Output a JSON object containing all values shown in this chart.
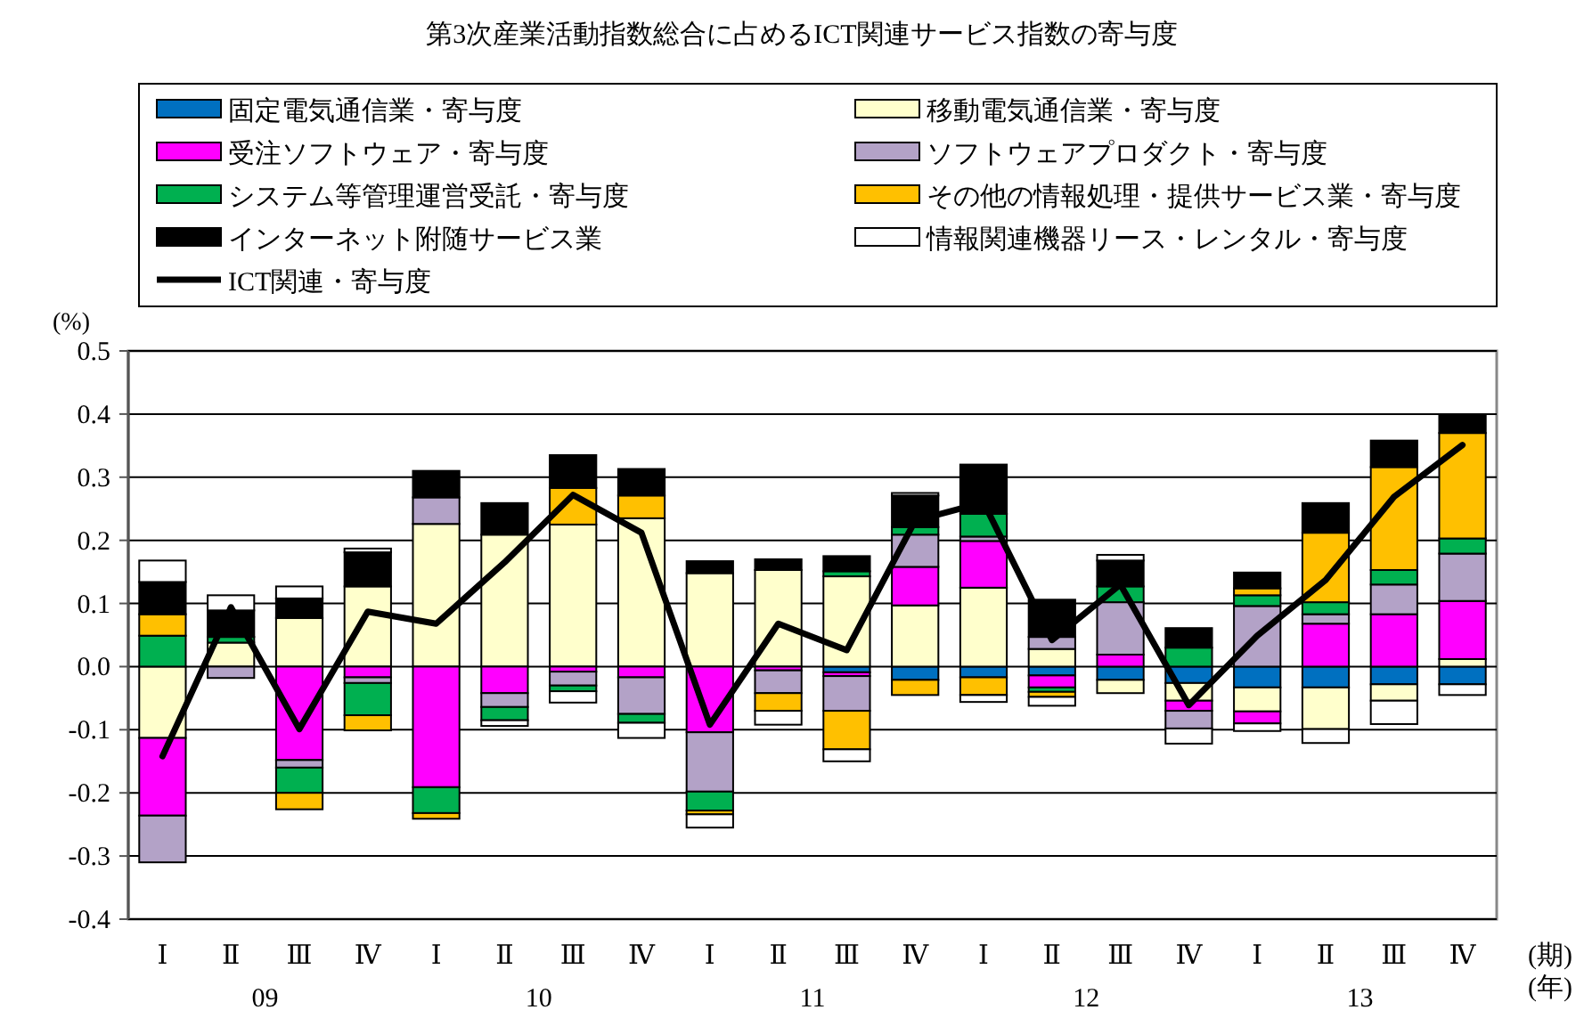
{
  "chart_data": {
    "type": "bar",
    "stacked": true,
    "title": "第3次産業活動指数総合に占めるICT関連サービス指数の寄与度",
    "ylabel": "(%)",
    "categories": [
      "Ⅰ",
      "Ⅱ",
      "Ⅲ",
      "Ⅳ",
      "Ⅰ",
      "Ⅱ",
      "Ⅲ",
      "Ⅳ",
      "Ⅰ",
      "Ⅱ",
      "Ⅲ",
      "Ⅳ",
      "Ⅰ",
      "Ⅱ",
      "Ⅲ",
      "Ⅳ",
      "Ⅰ",
      "Ⅱ",
      "Ⅲ",
      "Ⅳ"
    ],
    "annotations": [
      "09",
      "10",
      "11",
      "12",
      "13",
      "(期)",
      "(年)"
    ],
    "ylim": [
      -0.4,
      0.5
    ],
    "yticks": [
      -0.4,
      -0.3,
      -0.2,
      -0.1,
      {
        "value": 0,
        "label": "0.0"
      },
      0.1,
      0.2,
      0.3,
      0.4,
      0.5
    ],
    "grid": "y",
    "legend": "top",
    "series": [
      {
        "name": "固定電気通信業・寄与度",
        "color": "#0070c0",
        "values": [
          0,
          0,
          0,
          0,
          0,
          0,
          0,
          null,
          0,
          null,
          -0.009,
          -0.021,
          -0.017,
          -0.014,
          -0.021,
          -0.026,
          -0.033,
          -0.033,
          -0.028,
          -0.028
        ]
      },
      {
        "name": "移動電気通信業・寄与度",
        "color": "#ffffcc",
        "values": [
          -0.113,
          0.038,
          0.077,
          0.127,
          0.226,
          0.209,
          0.225,
          0.235,
          0.148,
          0.153,
          0.143,
          0.097,
          0.125,
          0.028,
          -0.021,
          -0.028,
          -0.038,
          -0.066,
          -0.026,
          0.012
        ]
      },
      {
        "name": "受注ソフトウェア・寄与度",
        "color": "#ff00ff",
        "values": [
          -0.123,
          0,
          -0.148,
          -0.017,
          -0.191,
          -0.042,
          -0.008,
          -0.017,
          -0.104,
          -0.006,
          -0.006,
          0.061,
          0.074,
          -0.019,
          0.019,
          -0.016,
          -0.019,
          0.068,
          0.083,
          0.092
        ]
      },
      {
        "name": "ソフトウェアプロダクト・寄与度",
        "color": "#b3a2c7",
        "values": [
          -0.074,
          -0.018,
          -0.012,
          -0.009,
          0.042,
          -0.022,
          -0.022,
          -0.058,
          -0.094,
          -0.036,
          -0.055,
          0.051,
          0.007,
          0.019,
          0.083,
          -0.028,
          0.096,
          0.015,
          0.047,
          0.075
        ]
      },
      {
        "name": "システム等管理運営受託・寄与度",
        "color": "#00b050",
        "values": [
          0.049,
          0.009,
          -0.04,
          -0.051,
          -0.041,
          -0.021,
          -0.009,
          -0.014,
          -0.03,
          0,
          0.008,
          0.012,
          0.036,
          -0.007,
          0.025,
          0.03,
          0.017,
          0.019,
          0.023,
          0.024
        ]
      },
      {
        "name": "その他の情報処理・提供サービス業・寄与度",
        "color": "#ffc000",
        "values": [
          0.034,
          0,
          -0.026,
          -0.024,
          -0.009,
          0,
          0.058,
          0.036,
          -0.006,
          -0.028,
          -0.061,
          -0.024,
          -0.028,
          -0.008,
          0,
          0,
          0.011,
          0.11,
          0.163,
          0.167
        ]
      },
      {
        "name": "インターネット附随サービス業",
        "color": "#000000",
        "values": [
          0.051,
          0.042,
          0.031,
          0.054,
          0.042,
          0.05,
          0.052,
          0.042,
          0.019,
          0.017,
          0.024,
          0.05,
          0.078,
          0.059,
          0.041,
          0.031,
          0.025,
          0.047,
          0.042,
          0.028
        ]
      },
      {
        "name": "情報関連機器リース・レンタル・寄与度",
        "color": "#ffffff",
        "values": [
          0.034,
          0.024,
          0.019,
          0.006,
          0,
          -0.009,
          -0.018,
          -0.024,
          -0.021,
          -0.022,
          -0.019,
          0.004,
          -0.011,
          -0.014,
          0.009,
          -0.024,
          -0.012,
          -0.022,
          -0.037,
          -0.017
        ]
      },
      {
        "name": "ICT関連・寄与度",
        "type": "line",
        "color": "#000000",
        "line_style": "solid",
        "marker": "none",
        "values": [
          -0.142,
          0.094,
          -0.099,
          0.087,
          0.068,
          0.165,
          0.272,
          0.212,
          -0.092,
          0.068,
          0.026,
          0.231,
          0.26,
          0.042,
          0.13,
          -0.061,
          0.049,
          0.137,
          0.269,
          0.351
        ]
      }
    ]
  }
}
